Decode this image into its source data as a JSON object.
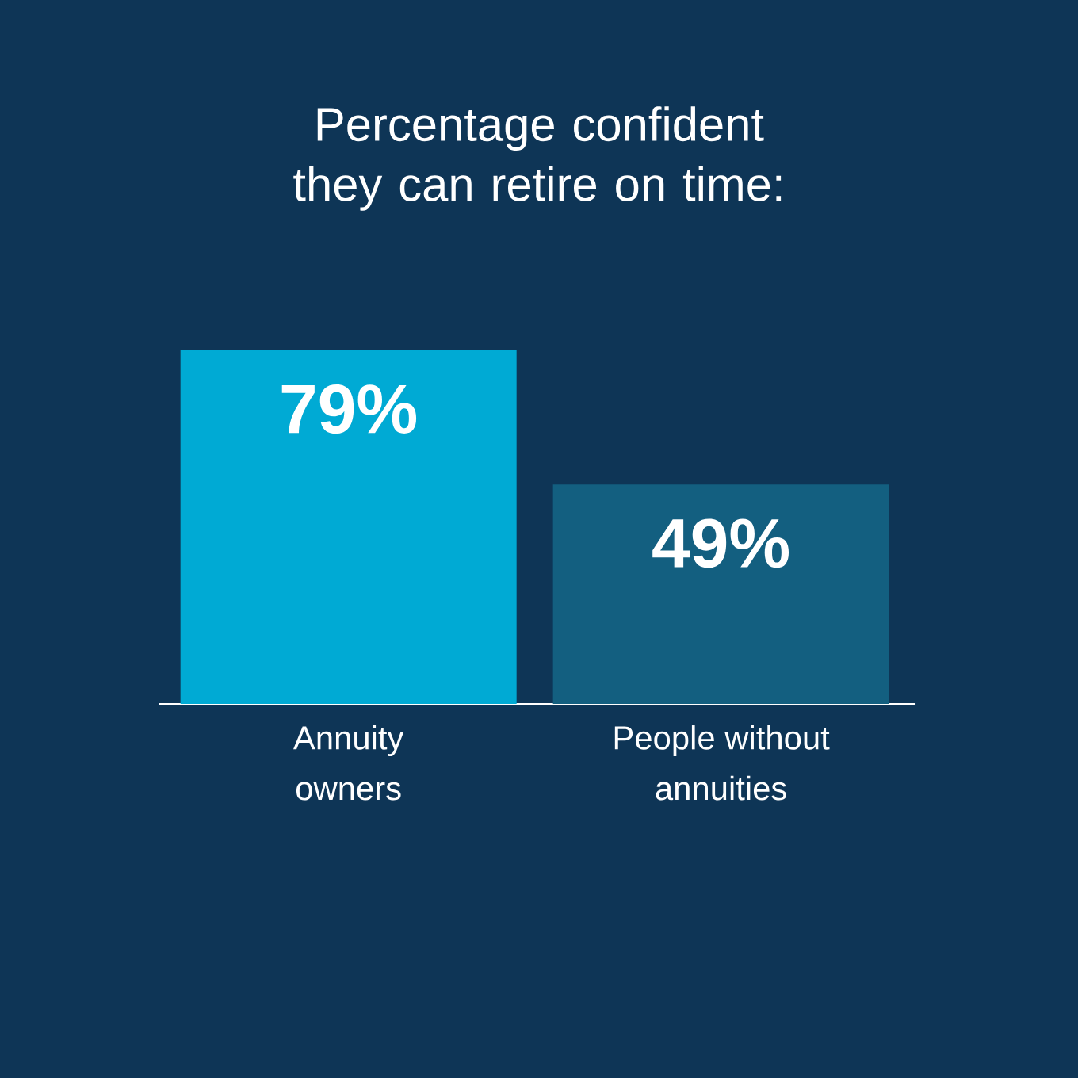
{
  "chart_data": {
    "type": "bar",
    "title": "Percentage confident they can retire on time:",
    "categories": [
      "Annuity owners",
      "People without annuities"
    ],
    "values": [
      79,
      49
    ],
    "colors": [
      "#00aad4",
      "#135f80"
    ],
    "value_labels": [
      "79%",
      "49%"
    ],
    "tick_labels": "x",
    "grid": false
  }
}
